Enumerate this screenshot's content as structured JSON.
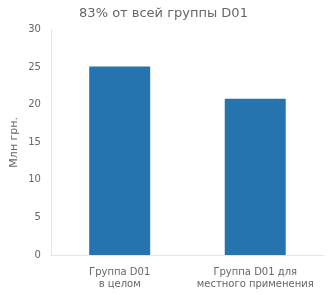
{
  "chart_data": {
    "type": "bar",
    "title": "83% от всей группы D01",
    "ylabel": "Млн грн.",
    "categories": [
      "Группа D01\nв целом",
      "Группа D01 для\nместного применения"
    ],
    "values": [
      25.1,
      20.8
    ],
    "color": "#2574b0",
    "ylim": [
      0,
      30
    ],
    "yticks": [
      0,
      5,
      10,
      15,
      20,
      25,
      30
    ],
    "grid": false
  }
}
